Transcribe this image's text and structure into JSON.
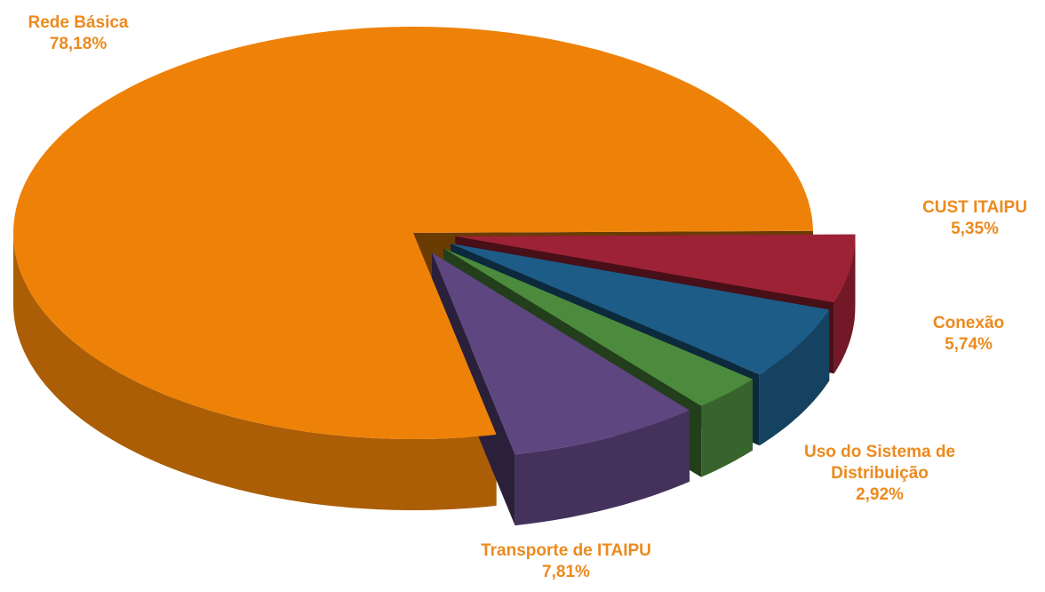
{
  "chart_data": {
    "type": "pie",
    "categories": [
      "Rede Básica",
      "CUST ITAIPU",
      "Conexão",
      "Uso do Sistema de Distribuição",
      "Transporte de  ITAIPU"
    ],
    "values": [
      78.18,
      5.35,
      5.74,
      2.92,
      7.81
    ],
    "value_labels": [
      "78,18%",
      "5,35%",
      "5,74%",
      "2,92%",
      "7,81%"
    ],
    "colors": [
      "#ee8209",
      "#9e2236",
      "#1d5c86",
      "#4c8a3d",
      "#5e4680"
    ],
    "label_color": "#ec8a1e"
  }
}
